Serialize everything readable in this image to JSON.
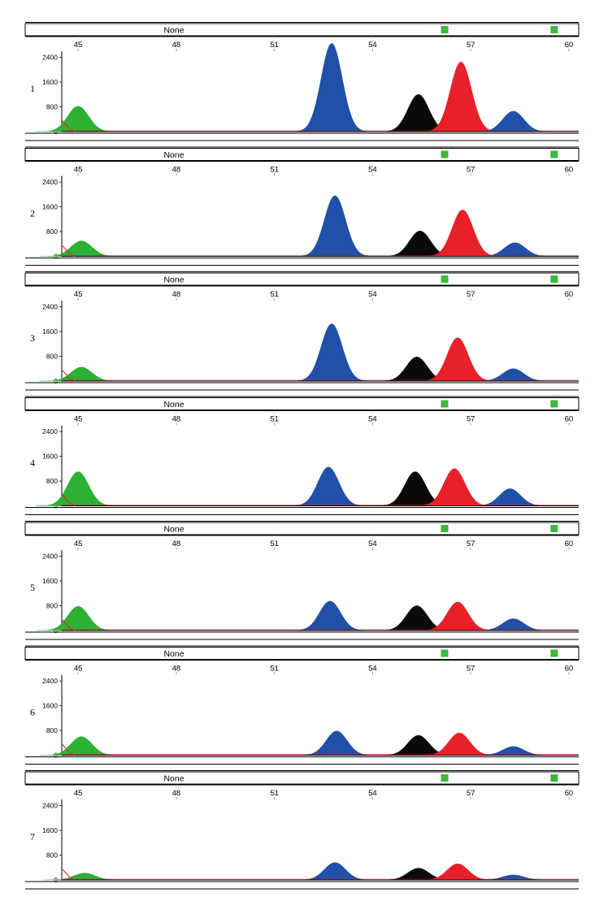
{
  "bar_label": "None",
  "colors": {
    "green": "#2db135",
    "blue": "#2050a8",
    "black": "#0a0a0a",
    "red": "#e8202a",
    "marker": "#3cb83c",
    "grid": "#d8d8d8"
  },
  "chart_data": {
    "type": "area",
    "description_of_axes": "x in size units (bp), y in signal intensity",
    "xlim": [
      44.5,
      60.3
    ],
    "ylim": [
      0,
      2600
    ],
    "x_ticks": [
      45,
      48,
      51,
      54,
      57,
      60
    ],
    "y_ticks": [
      0,
      800,
      1600,
      2400
    ],
    "markers_x": [
      56.2,
      59.55
    ],
    "panels": [
      {
        "label": "1",
        "peaks": [
          {
            "color": "green",
            "x": 45.0,
            "height": 820
          },
          {
            "color": "blue",
            "x": 52.75,
            "height": 2850
          },
          {
            "color": "black",
            "x": 55.4,
            "height": 1200
          },
          {
            "color": "red",
            "x": 56.7,
            "height": 2250
          },
          {
            "color": "blue",
            "x": 58.3,
            "height": 660
          }
        ]
      },
      {
        "label": "2",
        "peaks": [
          {
            "color": "green",
            "x": 45.1,
            "height": 500
          },
          {
            "color": "blue",
            "x": 52.85,
            "height": 1960
          },
          {
            "color": "black",
            "x": 55.45,
            "height": 820
          },
          {
            "color": "red",
            "x": 56.75,
            "height": 1500
          },
          {
            "color": "blue",
            "x": 58.35,
            "height": 440
          }
        ]
      },
      {
        "label": "3",
        "peaks": [
          {
            "color": "green",
            "x": 45.1,
            "height": 450
          },
          {
            "color": "blue",
            "x": 52.75,
            "height": 1850
          },
          {
            "color": "black",
            "x": 55.35,
            "height": 780
          },
          {
            "color": "red",
            "x": 56.6,
            "height": 1400
          },
          {
            "color": "blue",
            "x": 58.3,
            "height": 400
          }
        ]
      },
      {
        "label": "4",
        "peaks": [
          {
            "color": "green",
            "x": 45.0,
            "height": 1100
          },
          {
            "color": "blue",
            "x": 52.65,
            "height": 1250
          },
          {
            "color": "black",
            "x": 55.3,
            "height": 1100
          },
          {
            "color": "red",
            "x": 56.5,
            "height": 1200
          },
          {
            "color": "blue",
            "x": 58.2,
            "height": 550
          }
        ]
      },
      {
        "label": "5",
        "peaks": [
          {
            "color": "green",
            "x": 45.0,
            "height": 780
          },
          {
            "color": "blue",
            "x": 52.7,
            "height": 950
          },
          {
            "color": "black",
            "x": 55.35,
            "height": 800
          },
          {
            "color": "red",
            "x": 56.6,
            "height": 920
          },
          {
            "color": "blue",
            "x": 58.3,
            "height": 380
          }
        ]
      },
      {
        "label": "6",
        "peaks": [
          {
            "color": "green",
            "x": 45.1,
            "height": 600
          },
          {
            "color": "blue",
            "x": 52.9,
            "height": 780
          },
          {
            "color": "black",
            "x": 55.4,
            "height": 640
          },
          {
            "color": "red",
            "x": 56.65,
            "height": 720
          },
          {
            "color": "blue",
            "x": 58.3,
            "height": 280
          }
        ]
      },
      {
        "label": "7",
        "peaks": [
          {
            "color": "green",
            "x": 45.2,
            "height": 220
          },
          {
            "color": "blue",
            "x": 52.85,
            "height": 560
          },
          {
            "color": "black",
            "x": 55.4,
            "height": 380
          },
          {
            "color": "red",
            "x": 56.6,
            "height": 520
          },
          {
            "color": "blue",
            "x": 58.3,
            "height": 160
          }
        ]
      }
    ]
  }
}
